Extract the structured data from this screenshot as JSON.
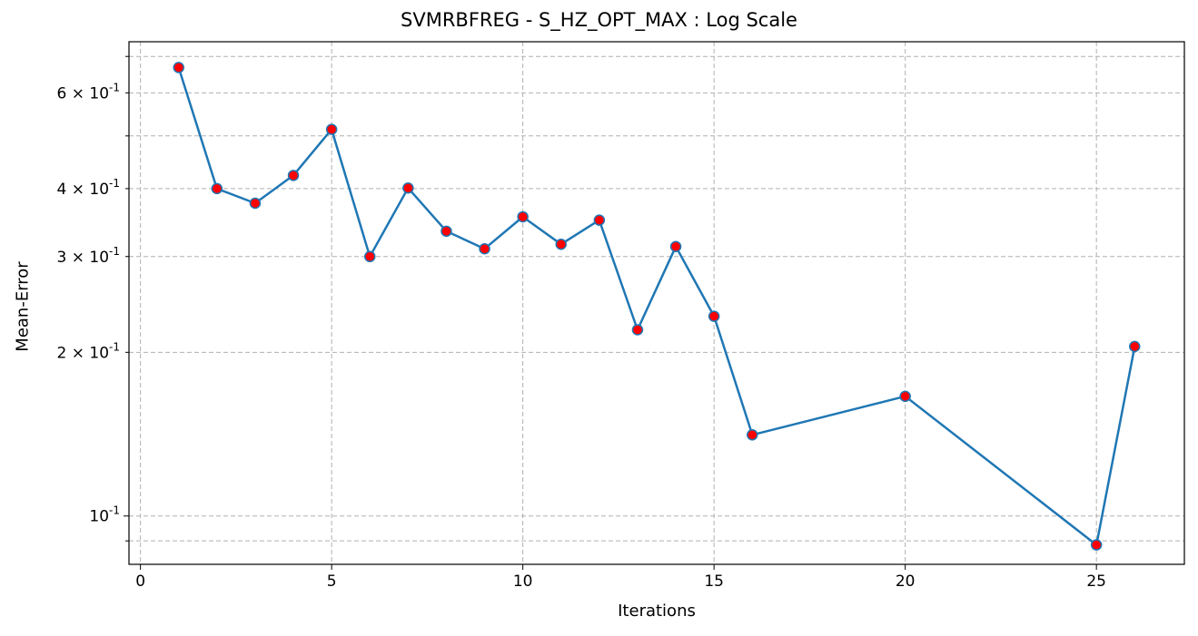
{
  "chart_data": {
    "type": "line",
    "title": "SVMRBFREG - S_HZ_OPT_MAX : Log Scale",
    "xlabel": "Iterations",
    "ylabel": "Mean-Error",
    "yscale": "log",
    "xlim": [
      -0.3,
      27.3
    ],
    "ylim": [
      0.0815,
      0.745
    ],
    "grid": true,
    "x_ticks": [
      0,
      5,
      10,
      15,
      20,
      25
    ],
    "y_major_ticks": [
      {
        "value": 0.1,
        "label": "10^{-1}"
      }
    ],
    "y_minor_ticks": [
      {
        "value": 0.09,
        "label": ""
      },
      {
        "value": 0.2,
        "label": "2×10^{-1}"
      },
      {
        "value": 0.3,
        "label": "3×10^{-1}"
      },
      {
        "value": 0.4,
        "label": "4×10^{-1}"
      },
      {
        "value": 0.5,
        "label": ""
      },
      {
        "value": 0.6,
        "label": "6×10^{-1}"
      },
      {
        "value": 0.7,
        "label": ""
      }
    ],
    "series": [
      {
        "line_color": "#1f77b4",
        "marker_color": "#ff0000",
        "marker_edge_color": "#1f77b4",
        "x": [
          1,
          2,
          3,
          4,
          5,
          6,
          7,
          8,
          9,
          10,
          11,
          12,
          13,
          14,
          15,
          16,
          20,
          25,
          26
        ],
        "y": [
          0.668,
          0.4,
          0.376,
          0.423,
          0.514,
          0.3,
          0.401,
          0.334,
          0.31,
          0.355,
          0.316,
          0.35,
          0.22,
          0.313,
          0.233,
          0.141,
          0.166,
          0.0885,
          0.205
        ]
      }
    ]
  }
}
